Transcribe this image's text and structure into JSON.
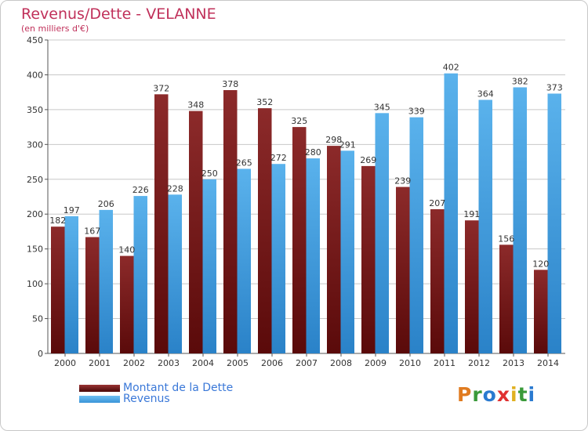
{
  "header": {
    "title": "Revenus/Dette - VELANNE",
    "subtitle": "(en milliers d'€)"
  },
  "legend": {
    "items": [
      {
        "label": "Montant de la Dette",
        "color": "#7a1a1a"
      },
      {
        "label": "Revenus",
        "color": "#4aa8e8"
      }
    ]
  },
  "logo": {
    "text": "Proxiti",
    "letter_colors": [
      "#e07b20",
      "#3a9a3a",
      "#2a7ad0",
      "#e03030",
      "#e0b020",
      "#3a9a3a",
      "#2a7ad0"
    ]
  },
  "colors": {
    "title": "#c0305a",
    "debt_top": "#8c2a2a",
    "debt_bottom": "#5a0a0a",
    "revenue_top": "#5ab2ec",
    "revenue_bottom": "#2a82c8",
    "grid": "#c8c8c8",
    "axis_text": "#333333"
  },
  "chart_data": {
    "type": "bar",
    "categories": [
      "2000",
      "2001",
      "2002",
      "2003",
      "2004",
      "2005",
      "2006",
      "2007",
      "2008",
      "2009",
      "2010",
      "2011",
      "2012",
      "2013",
      "2014"
    ],
    "series": [
      {
        "name": "Montant de la Dette",
        "values": [
          182,
          167,
          140,
          372,
          348,
          378,
          352,
          325,
          298,
          269,
          239,
          207,
          191,
          156,
          120
        ]
      },
      {
        "name": "Revenus",
        "values": [
          197,
          206,
          226,
          228,
          250,
          265,
          272,
          280,
          291,
          345,
          339,
          402,
          364,
          382,
          373
        ]
      }
    ],
    "ylim": [
      0,
      450
    ],
    "yticks": [
      "0",
      "50",
      "100",
      "150",
      "200",
      "250",
      "300",
      "350",
      "400",
      "450"
    ],
    "data_labels": [
      [
        "182",
        "167",
        "140",
        "372",
        "348",
        "378",
        "352",
        "325",
        "298",
        "269",
        "239",
        "207",
        "191",
        "156",
        "120"
      ],
      [
        "197",
        "206",
        "226",
        "228",
        "250",
        "265",
        "272",
        "280",
        "291",
        "345",
        "339",
        "402",
        "364",
        "382",
        "373"
      ]
    ],
    "grid": true,
    "legend_position": "bottom-left"
  }
}
